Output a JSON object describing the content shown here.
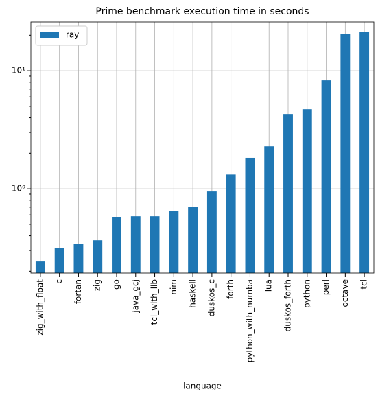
{
  "chart_data": {
    "type": "bar",
    "title": "Prime benchmark execution time in seconds",
    "x_label": "language",
    "categories": [
      "zig_with_float",
      "c",
      "fortan",
      "zig",
      "go",
      "java_gcj",
      "tcl_with_lib",
      "nim",
      "haskell",
      "duskos_c",
      "forth",
      "python_with_numba",
      "lua",
      "duskos_forth",
      "python",
      "perl",
      "octave",
      "tcl"
    ],
    "series": [
      {
        "name": "ray",
        "color": "#1f77b4",
        "values": [
          0.242,
          0.316,
          0.343,
          0.366,
          0.578,
          0.585,
          0.585,
          0.652,
          0.706,
          0.948,
          1.32,
          1.83,
          2.29,
          4.3,
          4.72,
          8.29,
          20.6,
          21.4
        ]
      }
    ],
    "log_scale": true,
    "ylim": [
      0.193,
      25.9
    ],
    "yticks": [
      {
        "value": 1,
        "label": "10⁰"
      },
      {
        "value": 10,
        "label": "10¹"
      }
    ],
    "yminorticks": [
      0.2,
      0.3,
      0.4,
      0.5,
      0.6,
      0.7,
      0.8,
      0.9,
      2,
      3,
      4,
      5,
      6,
      7,
      8,
      9,
      20
    ],
    "grid": true,
    "legend": "upper-left"
  }
}
